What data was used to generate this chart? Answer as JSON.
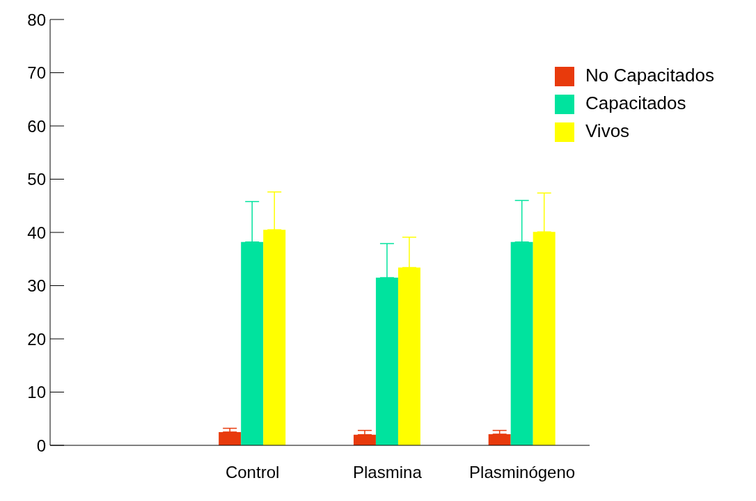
{
  "chart_data": {
    "type": "bar",
    "categories": [
      null,
      "Control",
      "Plasmina",
      "Plasminógeno"
    ],
    "series": [
      {
        "name": "No Capacitados",
        "color": "#e83a0c",
        "values": [
          null,
          2.5,
          2.0,
          2.1
        ],
        "errors": [
          null,
          [
            2.5,
            3.2
          ],
          [
            2.0,
            2.8
          ],
          [
            2.1,
            2.8
          ]
        ]
      },
      {
        "name": "Capacitados",
        "color": "#00e39e",
        "values": [
          null,
          38.2,
          31.5,
          38.2
        ],
        "errors": [
          null,
          [
            38.2,
            45.8
          ],
          [
            31.5,
            37.9
          ],
          [
            38.2,
            46.0
          ]
        ]
      },
      {
        "name": "Vivos",
        "color": "#ffff00",
        "values": [
          null,
          40.5,
          33.4,
          40.1
        ],
        "errors": [
          null,
          [
            40.5,
            47.6
          ],
          [
            33.4,
            39.1
          ],
          [
            40.1,
            47.4
          ]
        ]
      }
    ],
    "ylim": [
      0,
      80
    ],
    "yticks": [
      0,
      10,
      20,
      30,
      40,
      50,
      60,
      70,
      80
    ],
    "grid": false,
    "legend": "top right"
  }
}
